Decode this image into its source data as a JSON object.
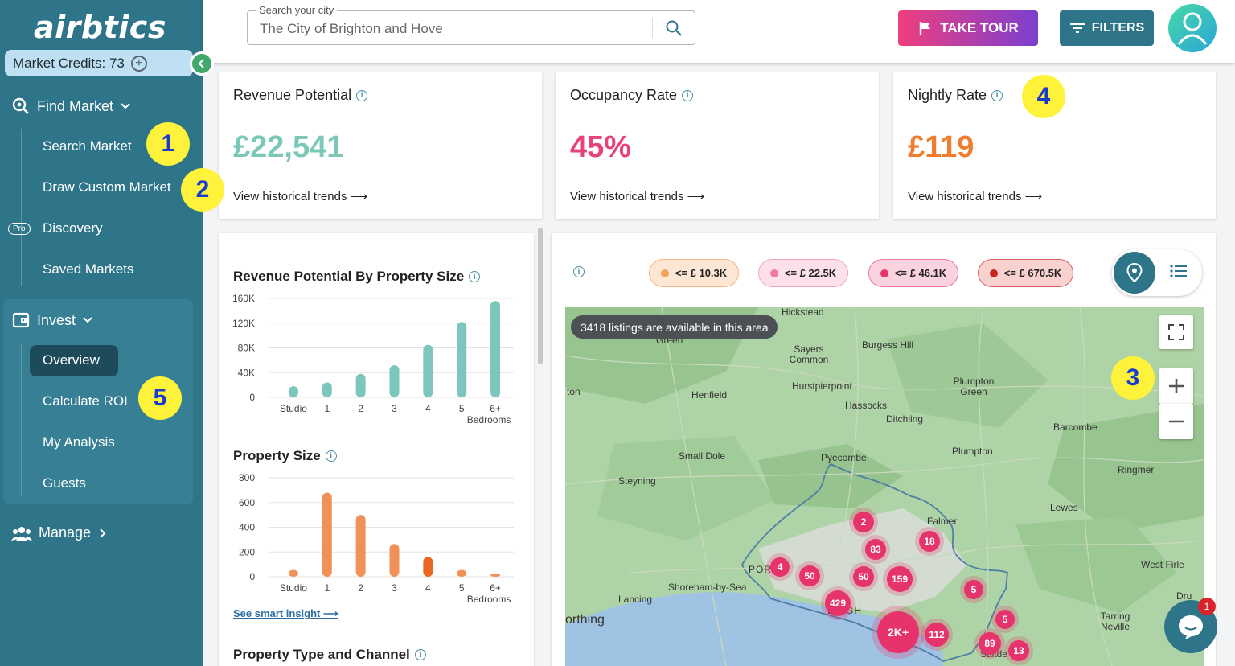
{
  "app": {
    "logo_text": "airbtics"
  },
  "sidebar": {
    "credits_label": "Market Credits: 73",
    "find_market": "Find Market",
    "find_items": [
      {
        "label": "Search Market"
      },
      {
        "label": "Draw Custom Market"
      },
      {
        "label": "Discovery",
        "badge": "Pro"
      },
      {
        "label": "Saved Markets"
      }
    ],
    "invest": "Invest",
    "invest_items": [
      {
        "label": "Overview",
        "active": true
      },
      {
        "label": "Calculate ROI"
      },
      {
        "label": "My Analysis"
      },
      {
        "label": "Guests"
      }
    ],
    "manage": "Manage"
  },
  "annotations": [
    "1",
    "2",
    "3",
    "4",
    "5"
  ],
  "search": {
    "label": "Search your city",
    "value": "The City of Brighton and Hove"
  },
  "toolbar": {
    "tour_label": "TAKE TOUR",
    "filters_label": "FILTERS"
  },
  "stats": [
    {
      "title": "Revenue Potential",
      "value": "£22,541",
      "color": "#7bc8b8",
      "link": "View historical trends ⟶"
    },
    {
      "title": "Occupancy Rate",
      "value": "45%",
      "color": "#e9417b",
      "link": "View historical trends ⟶"
    },
    {
      "title": "Nightly Rate",
      "value": "£119",
      "color": "#ef7d2d",
      "link": "View historical trends ⟶"
    }
  ],
  "charts": {
    "revenue_title": "Revenue Potential By Property Size",
    "size_title": "Property Size",
    "type_title": "Property Type and Channel",
    "smart_insight": "See smart insight ⟶"
  },
  "chart_data": [
    {
      "type": "bar",
      "title": "Revenue Potential By Property Size",
      "categories": [
        "Studio",
        "1",
        "2",
        "3",
        "4",
        "5",
        "6+"
      ],
      "values": [
        18000,
        24000,
        38000,
        52000,
        85000,
        122000,
        156000
      ],
      "ylim": [
        0,
        160000
      ],
      "yticks": [
        "0",
        "40K",
        "80K",
        "120K",
        "160K"
      ],
      "xlabel": "Bedrooms",
      "color": "#7cc6be"
    },
    {
      "type": "bar",
      "title": "Property Size",
      "categories": [
        "Studio",
        "1",
        "2",
        "3",
        "4",
        "5",
        "6+"
      ],
      "values": [
        55,
        680,
        500,
        265,
        160,
        55,
        20
      ],
      "ylim": [
        0,
        800
      ],
      "yticks": [
        "0",
        "200",
        "400",
        "600",
        "800"
      ],
      "xlabel": "Bedrooms",
      "color": "#f0915a",
      "highlight_index": 4,
      "highlight_color": "#e8661f"
    }
  ],
  "map": {
    "legend": [
      {
        "label": "<= £ 10.3K",
        "dot": "#f4a259",
        "bg": "#fde6d4",
        "border": "#f4b585"
      },
      {
        "label": "<= £ 22.5K",
        "dot": "#f07aa6",
        "bg": "#fde0ea",
        "border": "#f3a3c1"
      },
      {
        "label": "<= £ 46.1K",
        "dot": "#e6336b",
        "bg": "#fbd3df",
        "border": "#ec7a9e"
      },
      {
        "label": "<= £ 670.5K",
        "dot": "#c8251f",
        "bg": "#f9d2cf",
        "border": "#d8625d"
      }
    ],
    "message": "3418 listings are available in this area",
    "places": [
      "Hickstead",
      "Green",
      "Sayers Common",
      "Burgess Hill",
      "Henfield",
      "Hurstpierpoint",
      "Hassocks",
      "Ditchling",
      "Plumpton Green",
      "Barcombe",
      "Plumpton",
      "Small Dole",
      "Pyecombe",
      "Steyning",
      "Ringmer",
      "Lewes",
      "Falmer",
      "Shoreham-by-Sea",
      "Lancing",
      "West Firle",
      "Tarring Neville",
      "orthing",
      "POR",
      "BRIGH",
      "Saltde",
      "ton",
      "Dru"
    ],
    "clusters": [
      "2",
      "83",
      "18",
      "4",
      "50",
      "50",
      "159",
      "5",
      "429",
      "2K+",
      "112",
      "5",
      "89",
      "13"
    ]
  },
  "chat": {
    "badge": "1"
  }
}
